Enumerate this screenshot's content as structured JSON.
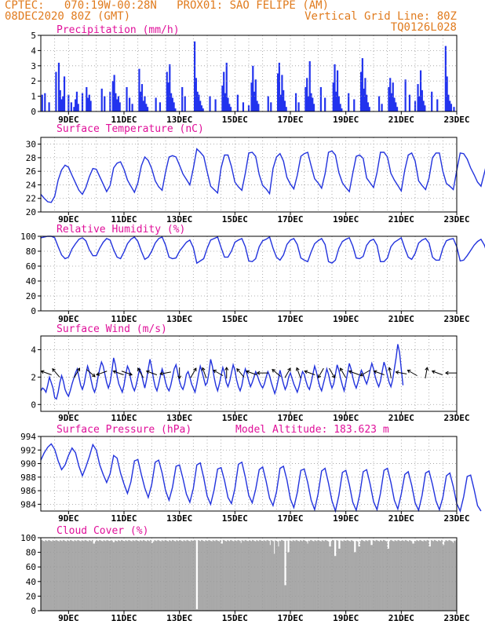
{
  "header": {
    "line1_left": "CPTEC:   070:19W-00:28N   PROX01: SAO FELIPE (AM)",
    "line2_left": "08DEC2020 80Z (GMT)",
    "line2_right": "Vertical Grid Line: 80Z",
    "line3_right": "TQ0126L028"
  },
  "colors": {
    "series": "#2233dd",
    "bars": "#2233ee",
    "cloud": "#a9a9a9",
    "title": "#e0109a",
    "header": "#e07b1e"
  },
  "x_labels": [
    "9DEC",
    "11DEC",
    "13DEC",
    "15DEC",
    "17DEC",
    "19DEC",
    "21DEC",
    "23DEC"
  ],
  "chart_data": [
    {
      "id": "precip",
      "type": "bar",
      "title": "Precipitation (mm/h)",
      "ylim": [
        0,
        5
      ],
      "yticks": [
        0,
        1,
        2,
        3,
        4,
        5
      ],
      "x_start_day": 8.0,
      "x_end_day": 23.0,
      "x": [
        8.05,
        8.15,
        8.3,
        8.55,
        8.65,
        8.7,
        8.75,
        8.8,
        8.85,
        9.0,
        9.1,
        9.2,
        9.25,
        9.3,
        9.35,
        9.5,
        9.65,
        9.7,
        9.75,
        9.8,
        10.2,
        10.3,
        10.5,
        10.6,
        10.65,
        10.7,
        10.75,
        10.8,
        10.85,
        11.1,
        11.2,
        11.3,
        11.55,
        11.6,
        11.65,
        11.7,
        11.75,
        11.8,
        11.85,
        12.15,
        12.3,
        12.55,
        12.6,
        12.65,
        12.7,
        12.75,
        12.8,
        12.85,
        13.1,
        13.2,
        13.55,
        13.6,
        13.65,
        13.7,
        13.75,
        13.8,
        13.85,
        14.1,
        14.3,
        14.55,
        14.6,
        14.65,
        14.7,
        14.75,
        14.8,
        14.85,
        15.1,
        15.3,
        15.5,
        15.6,
        15.65,
        15.7,
        15.75,
        15.8,
        15.85,
        16.2,
        16.3,
        16.55,
        16.6,
        16.65,
        16.7,
        16.75,
        16.8,
        16.85,
        17.2,
        17.3,
        17.55,
        17.6,
        17.65,
        17.7,
        17.75,
        17.8,
        17.85,
        18.1,
        18.25,
        18.55,
        18.6,
        18.65,
        18.7,
        18.75,
        18.8,
        18.85,
        19.1,
        19.3,
        19.55,
        19.6,
        19.65,
        19.7,
        19.75,
        19.8,
        19.85,
        20.2,
        20.3,
        20.55,
        20.6,
        20.65,
        20.7,
        20.75,
        20.8,
        20.85,
        21.15,
        21.3,
        21.5,
        21.6,
        21.65,
        21.7,
        21.75,
        21.8,
        21.85,
        22.1,
        22.3,
        22.6,
        22.65,
        22.7,
        22.75,
        22.8,
        22.9
      ],
      "values": [
        1.1,
        1.2,
        0.6,
        2.6,
        3.2,
        1.4,
        0.8,
        1.0,
        2.3,
        1.1,
        0.6,
        0.3,
        0.8,
        1.3,
        0.5,
        1.2,
        1.6,
        0.9,
        1.1,
        0.7,
        1.5,
        1.0,
        1.3,
        2.0,
        2.4,
        1.2,
        0.8,
        1.0,
        0.6,
        1.6,
        0.9,
        0.5,
        2.8,
        1.3,
        1.8,
        0.7,
        1.0,
        0.5,
        0.3,
        0.9,
        0.6,
        2.6,
        1.9,
        3.1,
        1.2,
        0.9,
        0.6,
        0.2,
        1.6,
        1.0,
        4.6,
        2.2,
        1.3,
        1.1,
        0.7,
        0.4,
        0.2,
        1.0,
        0.8,
        1.7,
        2.6,
        1.2,
        3.2,
        0.9,
        0.5,
        0.3,
        1.1,
        0.6,
        0.4,
        1.9,
        3.0,
        1.3,
        2.1,
        0.7,
        0.5,
        1.0,
        0.6,
        2.5,
        3.2,
        1.1,
        2.4,
        1.4,
        0.7,
        0.3,
        1.2,
        0.6,
        1.6,
        2.2,
        1.0,
        3.3,
        1.2,
        0.9,
        0.5,
        1.6,
        0.9,
        1.9,
        3.1,
        1.3,
        2.7,
        1.0,
        0.5,
        0.2,
        1.2,
        0.8,
        2.6,
        3.5,
        1.5,
        2.2,
        1.1,
        0.6,
        0.3,
        1.0,
        0.5,
        1.6,
        2.2,
        1.2,
        1.9,
        0.9,
        0.6,
        0.3,
        2.1,
        1.1,
        0.7,
        1.8,
        1.0,
        2.7,
        1.4,
        0.7,
        0.4,
        1.3,
        0.8,
        4.3,
        2.3,
        1.1,
        0.7,
        0.5,
        0.3
      ]
    },
    {
      "id": "temp",
      "type": "line",
      "title": "Surface Temperature (nC)",
      "ylim": [
        20,
        31
      ],
      "yticks": [
        20,
        22,
        24,
        26,
        28,
        30
      ],
      "x_start_day": 8.0,
      "x_step_day": 0.125,
      "values": [
        22.6,
        22.0,
        21.5,
        21.4,
        22.3,
        24.7,
        26.2,
        26.9,
        26.6,
        25.4,
        24.3,
        23.2,
        22.6,
        23.6,
        25.2,
        26.4,
        26.3,
        25.2,
        24.1,
        23.0,
        23.9,
        26.5,
        27.2,
        27.4,
        26.3,
        24.7,
        23.8,
        22.9,
        24.3,
        26.8,
        28.1,
        27.6,
        26.4,
        24.6,
        23.7,
        23.2,
        25.9,
        28.1,
        28.3,
        28.1,
        26.9,
        25.6,
        24.8,
        24.0,
        26.4,
        29.3,
        28.8,
        28.2,
        25.9,
        23.8,
        23.3,
        22.8,
        26.5,
        28.4,
        28.4,
        26.7,
        24.4,
        23.7,
        23.2,
        25.7,
        28.7,
        28.8,
        28.2,
        25.5,
        23.9,
        23.4,
        22.7,
        26.4,
        28.1,
        28.6,
        27.5,
        25.1,
        24.1,
        23.4,
        25.4,
        28.2,
        28.6,
        28.8,
        26.8,
        24.9,
        24.3,
        23.5,
        25.6,
        28.8,
        29.0,
        28.4,
        25.8,
        24.3,
        23.6,
        23.0,
        25.7,
        28.2,
        28.4,
        27.9,
        25.0,
        24.3,
        23.6,
        25.8,
        28.8,
        28.8,
        28.1,
        25.7,
        24.7,
        23.9,
        23.1,
        26.2,
        28.4,
        28.7,
        27.5,
        24.6,
        23.9,
        23.3,
        25.0,
        28.0,
        28.7,
        28.7,
        26.0,
        24.2,
        23.8,
        23.3,
        26.1,
        28.7,
        28.6,
        27.8,
        26.5,
        25.5,
        24.4,
        23.8,
        25.8,
        27.9,
        28.3,
        27.7
      ]
    },
    {
      "id": "rh",
      "type": "line",
      "title": "Relative Humidity (%)",
      "ylim": [
        0,
        100
      ],
      "yticks": [
        0,
        20,
        40,
        60,
        80,
        100
      ],
      "x_start_day": 8.0,
      "x_step_day": 0.125,
      "values": [
        98,
        99,
        100,
        100,
        98,
        86,
        75,
        70,
        72,
        83,
        90,
        96,
        98,
        94,
        82,
        74,
        74,
        84,
        92,
        97,
        95,
        82,
        72,
        70,
        79,
        90,
        96,
        99,
        93,
        80,
        69,
        72,
        80,
        91,
        97,
        99,
        88,
        72,
        70,
        71,
        80,
        86,
        92,
        95,
        85,
        64,
        67,
        70,
        84,
        95,
        97,
        99,
        85,
        72,
        72,
        80,
        92,
        95,
        97,
        86,
        67,
        66,
        70,
        86,
        94,
        96,
        99,
        84,
        72,
        68,
        75,
        89,
        95,
        97,
        89,
        71,
        68,
        66,
        79,
        90,
        94,
        97,
        89,
        66,
        64,
        68,
        84,
        93,
        96,
        98,
        87,
        71,
        70,
        73,
        88,
        94,
        96,
        88,
        66,
        66,
        71,
        86,
        92,
        95,
        98,
        84,
        72,
        69,
        77,
        91,
        95,
        97,
        91,
        72,
        68,
        68,
        84,
        94,
        96,
        97,
        86,
        67,
        68,
        74,
        81,
        88,
        93,
        96,
        88,
        74,
        70,
        76
      ]
    },
    {
      "id": "wind",
      "type": "line",
      "title": "Surface Wind (m/s)",
      "ylim": [
        -0.5,
        5.0
      ],
      "yticks": [
        0,
        2,
        4
      ],
      "x_start_day": 8.0,
      "x_step_day": 0.0625,
      "values": [
        1.0,
        1.2,
        1.1,
        0.9,
        1.4,
        2.0,
        1.6,
        1.2,
        0.5,
        0.4,
        0.9,
        1.6,
        2.1,
        1.7,
        1.1,
        0.8,
        0.6,
        1.0,
        1.5,
        1.9,
        2.3,
        2.6,
        2.0,
        1.4,
        1.1,
        1.5,
        2.2,
        2.8,
        2.4,
        1.8,
        1.2,
        0.9,
        1.3,
        2.0,
        2.6,
        3.1,
        2.8,
        2.2,
        1.6,
        1.2,
        1.6,
        2.4,
        3.4,
        2.9,
        2.1,
        1.5,
        1.2,
        0.9,
        1.4,
        2.2,
        2.8,
        2.5,
        1.8,
        1.3,
        1.0,
        1.4,
        2.0,
        2.6,
        2.3,
        1.7,
        1.2,
        1.8,
        2.6,
        3.3,
        2.7,
        1.9,
        1.3,
        1.0,
        1.5,
        2.1,
        2.6,
        2.2,
        1.6,
        1.2,
        1.0,
        1.4,
        2.0,
        2.6,
        2.9,
        2.3,
        1.7,
        1.3,
        1.1,
        1.5,
        2.2,
        2.4,
        2.0,
        1.5,
        1.2,
        0.9,
        1.5,
        2.2,
        2.8,
        2.4,
        1.9,
        1.4,
        1.6,
        2.3,
        3.3,
        2.8,
        2.0,
        1.4,
        1.0,
        1.5,
        2.1,
        2.7,
        2.3,
        1.6,
        1.3,
        1.7,
        2.3,
        2.9,
        2.5,
        1.8,
        1.3,
        1.0,
        1.4,
        2.1,
        2.6,
        2.2,
        1.7,
        1.3,
        1.6,
        2.0,
        2.4,
        2.1,
        1.7,
        1.4,
        1.2,
        1.5,
        2.0,
        2.4,
        2.1,
        1.6,
        1.2,
        0.8,
        1.2,
        1.8,
        2.5,
        2.0,
        1.5,
        1.1,
        1.4,
        2.0,
        2.3,
        1.9,
        1.5,
        1.2,
        0.9,
        1.3,
        1.9,
        2.4,
        2.2,
        1.7,
        1.3,
        1.1,
        1.6,
        2.2,
        2.8,
        2.4,
        1.8,
        1.3,
        1.0,
        1.5,
        2.0,
        2.6,
        2.2,
        1.6,
        1.2,
        1.5,
        2.2,
        2.9,
        2.5,
        1.9,
        1.4,
        1.0,
        1.6,
        2.3,
        3.0,
        2.6,
        2.0,
        1.5,
        1.2,
        1.6,
        2.1,
        2.5,
        2.2,
        1.8,
        1.5,
        1.9,
        2.5,
        3.0,
        2.6,
        2.0,
        1.6,
        1.3,
        1.7,
        2.4,
        3.1,
        2.7,
        2.1,
        1.6,
        1.3,
        1.8,
        2.6,
        3.4,
        4.4,
        3.8,
        2.6,
        1.4
      ]
    },
    {
      "id": "pres",
      "type": "line",
      "title": "Surface Pressure (hPa)",
      "annotation": "Model Altitude: 183.623 m",
      "ylim": [
        983,
        994
      ],
      "yticks": [
        984,
        986,
        988,
        990,
        992,
        994
      ],
      "x_start_day": 8.0,
      "x_step_day": 0.125,
      "values": [
        990.5,
        991.6,
        992.4,
        992.9,
        992.1,
        990.4,
        989.1,
        989.8,
        991.2,
        992.3,
        991.6,
        989.6,
        988.2,
        989.5,
        991.0,
        992.8,
        992.0,
        989.8,
        988.4,
        987.2,
        988.5,
        991.2,
        990.8,
        988.6,
        987.0,
        985.6,
        987.3,
        990.4,
        990.6,
        988.4,
        986.4,
        985.0,
        986.9,
        990.2,
        990.5,
        988.6,
        986.0,
        984.6,
        986.5,
        989.6,
        989.8,
        987.8,
        985.5,
        984.3,
        986.3,
        989.8,
        990.1,
        987.9,
        985.2,
        984.0,
        986.1,
        989.2,
        989.4,
        987.5,
        985.0,
        984.1,
        986.3,
        989.9,
        990.2,
        988.0,
        985.3,
        984.2,
        986.2,
        989.1,
        989.5,
        987.4,
        984.9,
        983.8,
        985.8,
        989.3,
        989.6,
        987.6,
        984.8,
        983.5,
        985.7,
        989.0,
        989.2,
        987.2,
        984.6,
        983.2,
        985.5,
        988.9,
        989.3,
        987.1,
        984.5,
        983.0,
        985.3,
        988.7,
        989.0,
        986.9,
        984.3,
        983.1,
        985.4,
        988.8,
        989.1,
        987.0,
        984.4,
        983.2,
        985.6,
        989.0,
        989.3,
        987.2,
        984.6,
        983.3,
        985.5,
        988.4,
        988.8,
        986.8,
        984.2,
        983.1,
        985.3,
        988.6,
        988.9,
        986.9,
        984.5,
        983.2,
        985.0,
        988.2,
        988.6,
        986.6,
        984.1,
        983.0,
        985.1,
        988.1,
        988.3,
        986.2,
        983.8,
        983.0
      ]
    },
    {
      "id": "cloud",
      "type": "area",
      "title": "Cloud Cover (%)",
      "ylim": [
        0,
        100
      ],
      "yticks": [
        0,
        20,
        40,
        60,
        80,
        100
      ],
      "x_start_day": 8.0,
      "x_end_day": 23.0,
      "base_level": 97,
      "dips": [
        [
          9.9,
          92
        ],
        [
          10.6,
          94
        ],
        [
          12.0,
          93
        ],
        [
          13.35,
          96
        ],
        [
          13.6,
          2
        ],
        [
          14.5,
          92
        ],
        [
          15.2,
          93
        ],
        [
          16.25,
          90
        ],
        [
          16.4,
          78
        ],
        [
          16.55,
          88
        ],
        [
          16.8,
          35
        ],
        [
          16.9,
          80
        ],
        [
          17.6,
          92
        ],
        [
          18.4,
          88
        ],
        [
          18.6,
          75
        ],
        [
          18.75,
          85
        ],
        [
          19.3,
          80
        ],
        [
          19.45,
          88
        ],
        [
          19.9,
          90
        ],
        [
          20.5,
          85
        ],
        [
          21.4,
          92
        ],
        [
          22.0,
          88
        ],
        [
          22.5,
          90
        ],
        [
          22.85,
          93
        ]
      ]
    }
  ]
}
